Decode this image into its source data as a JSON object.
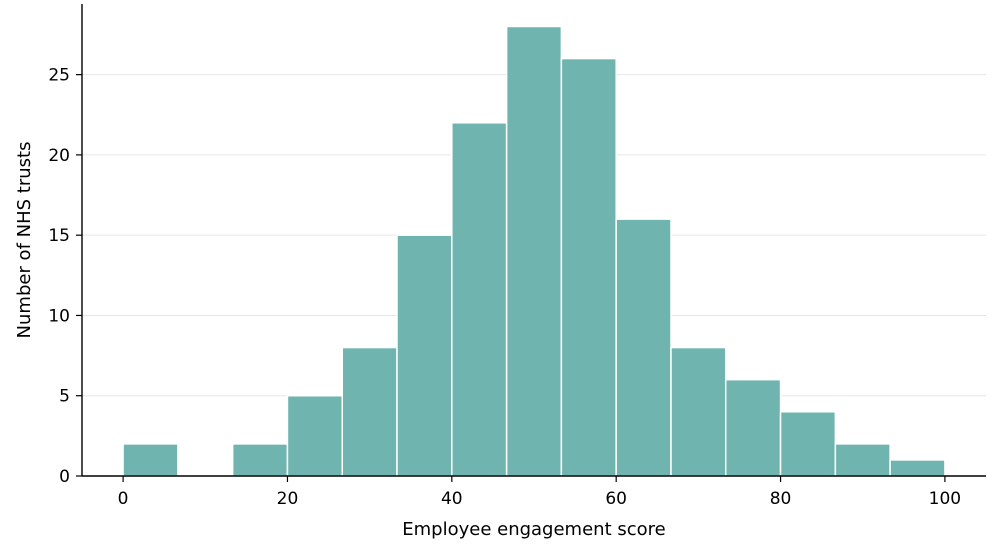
{
  "chart_data": {
    "type": "bar",
    "subtype": "histogram",
    "xlabel": "Employee engagement score",
    "ylabel": "Number of NHS trusts",
    "xlim": [
      -5,
      105
    ],
    "ylim": [
      0,
      29.4
    ],
    "xticks": [
      0,
      20,
      40,
      60,
      80,
      100
    ],
    "yticks": [
      0,
      5,
      10,
      15,
      20,
      25
    ],
    "grid": "horizontal",
    "bin_edges": [
      0,
      6.67,
      13.33,
      20,
      26.67,
      33.33,
      40,
      46.67,
      53.33,
      60,
      66.67,
      73.33,
      80,
      86.67,
      93.33,
      100
    ],
    "values": [
      2,
      0,
      2,
      5,
      8,
      15,
      22,
      28,
      26,
      16,
      8,
      6,
      4,
      2,
      1
    ],
    "bar_color": "#6fb4ae",
    "grid_color": "#e6e6e6"
  }
}
